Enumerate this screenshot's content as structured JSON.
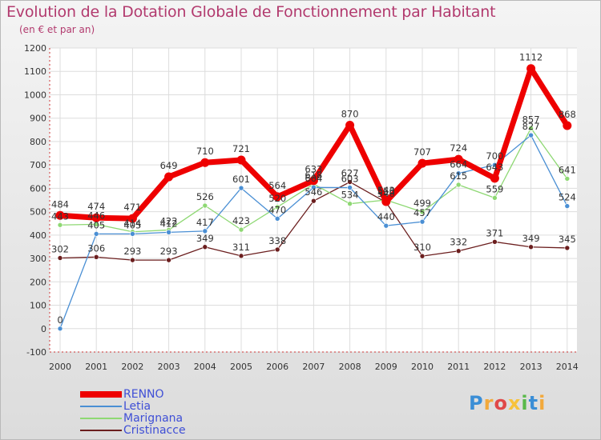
{
  "header": {
    "title": "Evolution de la Dotation Globale de Fonctionnement par Habitant",
    "subtitle": "(en € et par an)"
  },
  "logo": {
    "letters": [
      "P",
      "r",
      "o",
      "x",
      "i",
      "t",
      "i"
    ]
  },
  "chart_data": {
    "type": "line",
    "title": "Evolution de la Dotation Globale de Fonctionnement par Habitant",
    "subtitle": "(en € et par an)",
    "xlabel": "",
    "ylabel": "",
    "categories": [
      "2000",
      "2001",
      "2002",
      "2003",
      "2004",
      "2005",
      "2006",
      "2007",
      "2008",
      "2009",
      "2010",
      "2011",
      "2012",
      "2013",
      "2014"
    ],
    "ylim": [
      -100,
      1200
    ],
    "yticks": [
      -100,
      0,
      100,
      200,
      300,
      400,
      500,
      600,
      700,
      800,
      900,
      1000,
      1100,
      1200
    ],
    "grid": true,
    "legend_position": "bottom-left",
    "series": [
      {
        "name": "Cristinacce",
        "color": "#6b1e1e",
        "values": [
          302,
          306,
          293,
          293,
          349,
          311,
          338,
          546,
          627,
          540,
          310,
          332,
          371,
          349,
          345
        ]
      },
      {
        "name": "Marignana",
        "color": "#8ed873",
        "values": [
          443,
          446,
          414,
          422,
          526,
          423,
          520,
          618,
          534,
          550,
          499,
          615,
          559,
          857,
          641
        ]
      },
      {
        "name": "Letia",
        "color": "#4a8fd4",
        "values": [
          0,
          405,
          405,
          412,
          417,
          601,
          470,
          604,
          603,
          440,
          457,
          664,
          700,
          827,
          524
        ]
      },
      {
        "name": "RENNO",
        "color": "#ee0000",
        "values": [
          484,
          474,
          471,
          649,
          710,
          721,
          564,
          633,
          870,
          543,
          707,
          724,
          643,
          1112,
          868
        ]
      }
    ],
    "legend": [
      "RENNO",
      "Letia",
      "Marignana",
      "Cristinacce"
    ]
  }
}
